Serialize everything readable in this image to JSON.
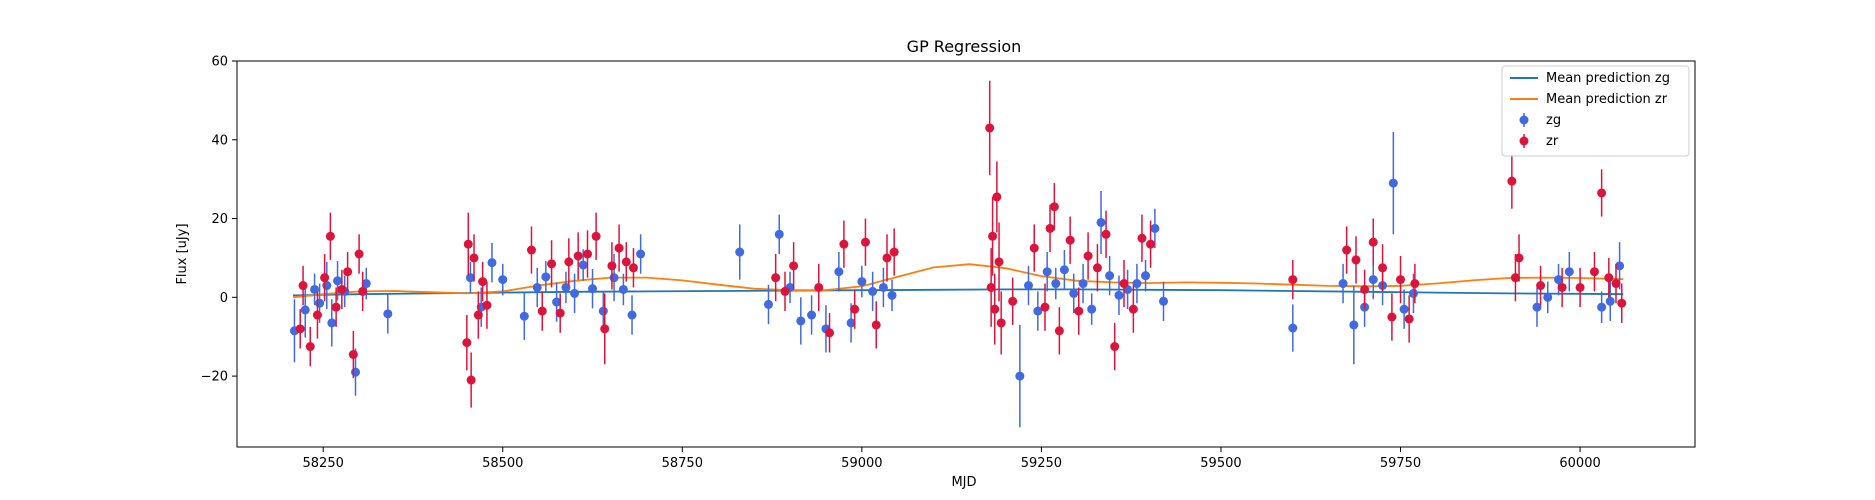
{
  "chart_data": {
    "type": "scatter",
    "title": "GP Regression",
    "xlabel": "MJD",
    "ylabel": "Flux [uJy]",
    "xlim": [
      58130,
      60160
    ],
    "ylim": [
      -38,
      60
    ],
    "xticks": [
      58250,
      58500,
      58750,
      59000,
      59250,
      59500,
      59750,
      60000
    ],
    "yticks": [
      -20,
      0,
      20,
      40,
      60
    ],
    "xtick_labels": [
      "58250",
      "58500",
      "58750",
      "59000",
      "59250",
      "59500",
      "59750",
      "60000"
    ],
    "ytick_labels": [
      "−20",
      "0",
      "20",
      "40",
      "60"
    ],
    "legend": {
      "placement": "top-right",
      "entries": [
        "Mean prediction zg",
        "Mean prediction zr",
        "zg",
        "zr"
      ]
    },
    "colors": {
      "zg_line": "#1f77b4",
      "zr_line": "#ff7f0e",
      "zg_points": "#4169e1",
      "zr_points": "#dc143c"
    },
    "lines": [
      {
        "name": "Mean prediction zg",
        "x": [
          58208,
          58300,
          58400,
          58500,
          58600,
          58700,
          58800,
          58900,
          59000,
          59100,
          59200,
          59300,
          59400,
          59500,
          59600,
          59700,
          59800,
          59900,
          60000,
          60060
        ],
        "y": [
          0.5,
          0.8,
          1.0,
          1.2,
          1.4,
          1.5,
          1.6,
          1.7,
          1.8,
          1.9,
          2.0,
          2.0,
          1.9,
          1.8,
          1.6,
          1.4,
          1.2,
          1.0,
          0.9,
          0.8
        ]
      },
      {
        "name": "Mean prediction zr",
        "x": [
          58208,
          58250,
          58300,
          58350,
          58400,
          58450,
          58500,
          58550,
          58600,
          58650,
          58700,
          58750,
          58800,
          58850,
          58900,
          58950,
          59000,
          59050,
          59100,
          59150,
          59200,
          59250,
          59300,
          59350,
          59400,
          59450,
          59500,
          59550,
          59600,
          59650,
          59700,
          59750,
          59800,
          59850,
          59900,
          59950,
          60000,
          60060
        ],
        "y": [
          0.0,
          0.8,
          1.5,
          1.6,
          1.3,
          1.0,
          1.5,
          3.0,
          4.2,
          5.0,
          5.0,
          4.3,
          3.2,
          2.2,
          1.8,
          1.8,
          2.8,
          5.2,
          7.6,
          8.4,
          7.4,
          5.4,
          4.2,
          3.8,
          3.6,
          3.8,
          3.7,
          3.5,
          3.2,
          2.9,
          2.8,
          2.9,
          3.5,
          4.3,
          4.9,
          5.0,
          4.9,
          4.6
        ]
      }
    ],
    "series": [
      {
        "name": "zg",
        "x": [
          58210,
          58225,
          58238,
          58245,
          58255,
          58262,
          58270,
          58280,
          58295,
          58310,
          58340,
          58455,
          58470,
          58485,
          58500,
          58530,
          58548,
          58560,
          58575,
          58588,
          58600,
          58612,
          58625,
          58640,
          58655,
          58668,
          58680,
          58692,
          58830,
          58870,
          58885,
          58900,
          58915,
          58930,
          58950,
          58968,
          58985,
          59000,
          59015,
          59030,
          59042,
          59220,
          59232,
          59245,
          59258,
          59270,
          59282,
          59295,
          59308,
          59320,
          59333,
          59345,
          59358,
          59370,
          59383,
          59395,
          59408,
          59420,
          59600,
          59670,
          59685,
          59700,
          59712,
          59725,
          59740,
          59755,
          59768,
          59940,
          59955,
          59970,
          59985,
          60030,
          60042,
          60055
        ],
        "y": [
          -8.5,
          -3.2,
          2.0,
          -1.5,
          3.0,
          -6.5,
          4.2,
          1.5,
          -19.0,
          3.5,
          -4.2,
          5.0,
          -2.5,
          8.8,
          4.5,
          -4.8,
          2.5,
          5.2,
          -1.2,
          2.5,
          1.0,
          8.2,
          2.2,
          -3.5,
          5.0,
          2.0,
          -4.5,
          11.0,
          11.5,
          -1.8,
          16.0,
          2.5,
          -6.0,
          -4.5,
          -8.0,
          6.5,
          -6.5,
          4.0,
          1.5,
          2.5,
          0.5,
          -20.0,
          3.0,
          -3.5,
          6.5,
          3.5,
          7.0,
          1.0,
          3.5,
          -3.0,
          19.0,
          5.5,
          0.5,
          2.0,
          3.5,
          5.5,
          17.5,
          -1.0,
          -7.8,
          3.5,
          -7.0,
          -2.5,
          4.5,
          3.0,
          29.0,
          -3.0,
          1.0,
          -2.5,
          0.0,
          4.5,
          6.5,
          -2.5,
          -1.0,
          8.0
        ],
        "err": [
          8,
          7,
          4,
          5,
          6,
          6,
          5,
          4,
          6,
          4,
          5,
          4,
          5,
          5,
          4,
          6,
          5,
          4,
          5,
          4,
          5,
          4,
          5,
          5,
          6,
          4,
          5,
          5,
          7,
          5,
          5,
          4,
          6,
          5,
          6,
          5,
          5,
          4,
          5,
          5,
          4,
          13,
          5,
          5,
          5,
          4,
          5,
          5,
          5,
          4,
          8,
          5,
          5,
          5,
          5,
          4,
          5,
          5,
          6,
          5,
          10,
          5,
          5,
          5,
          13,
          5,
          5,
          5,
          4,
          4,
          5,
          4,
          5,
          6
        ]
      },
      {
        "name": "zr",
        "x": [
          58218,
          58222,
          58232,
          58242,
          58252,
          58260,
          58268,
          58276,
          58284,
          58292,
          58300,
          58305,
          58450,
          58452,
          58456,
          58460,
          58466,
          58472,
          58478,
          58540,
          58555,
          58568,
          58580,
          58592,
          58605,
          58618,
          58630,
          58642,
          58652,
          58662,
          58672,
          58682,
          58880,
          58893,
          58905,
          58940,
          58955,
          58975,
          58990,
          59005,
          59020,
          59035,
          59045,
          59178,
          59180,
          59182,
          59185,
          59188,
          59191,
          59194,
          59210,
          59240,
          59255,
          59262,
          59268,
          59275,
          59290,
          59302,
          59315,
          59328,
          59340,
          59352,
          59365,
          59378,
          59390,
          59402,
          59600,
          59675,
          59688,
          59700,
          59712,
          59725,
          59738,
          59750,
          59762,
          59770,
          59905,
          59910,
          59915,
          59945,
          59975,
          60000,
          60020,
          60030,
          60040,
          60050,
          60058
        ],
        "y": [
          -8.0,
          3.0,
          -12.5,
          -4.5,
          5.0,
          15.5,
          -2.5,
          2.0,
          6.5,
          -14.5,
          11.0,
          1.5,
          -11.5,
          13.5,
          -21.0,
          10.0,
          -4.5,
          4.0,
          -2.0,
          12.0,
          -3.5,
          8.5,
          -4.0,
          9.0,
          10.5,
          11.0,
          15.5,
          -8.0,
          8.0,
          12.5,
          9.0,
          7.5,
          5.0,
          1.5,
          8.0,
          2.5,
          -9.0,
          13.5,
          -3.0,
          14.0,
          -7.0,
          10.0,
          11.5,
          43.0,
          2.5,
          15.5,
          -3.0,
          25.5,
          9.0,
          -6.5,
          -1.0,
          12.5,
          -2.5,
          17.5,
          23.0,
          -8.5,
          14.5,
          -3.5,
          10.5,
          7.5,
          16.0,
          -12.5,
          3.5,
          -3.0,
          15.0,
          13.5,
          4.5,
          12.0,
          9.5,
          2.0,
          14.0,
          7.5,
          -5.0,
          4.5,
          -5.5,
          3.5,
          29.5,
          5.0,
          10.0,
          3.0,
          2.5,
          2.5,
          6.5,
          26.5,
          5.0,
          3.5,
          -1.5
        ],
        "err": [
          5,
          5,
          5,
          6,
          6,
          6,
          5,
          5,
          5,
          6,
          5,
          5,
          7,
          8,
          7,
          6,
          6,
          5,
          6,
          6,
          5,
          6,
          5,
          6,
          6,
          6,
          6,
          9,
          6,
          6,
          5,
          5,
          6,
          5,
          6,
          6,
          5,
          6,
          5,
          6,
          6,
          6,
          6,
          12,
          10,
          10,
          9,
          9,
          10,
          8,
          6,
          6,
          6,
          6,
          6,
          6,
          6,
          6,
          6,
          6,
          6,
          6,
          6,
          6,
          6,
          6,
          5,
          6,
          6,
          5,
          6,
          6,
          6,
          6,
          6,
          5,
          7,
          6,
          6,
          5,
          5,
          5,
          5,
          6,
          5,
          5,
          5
        ]
      }
    ]
  }
}
